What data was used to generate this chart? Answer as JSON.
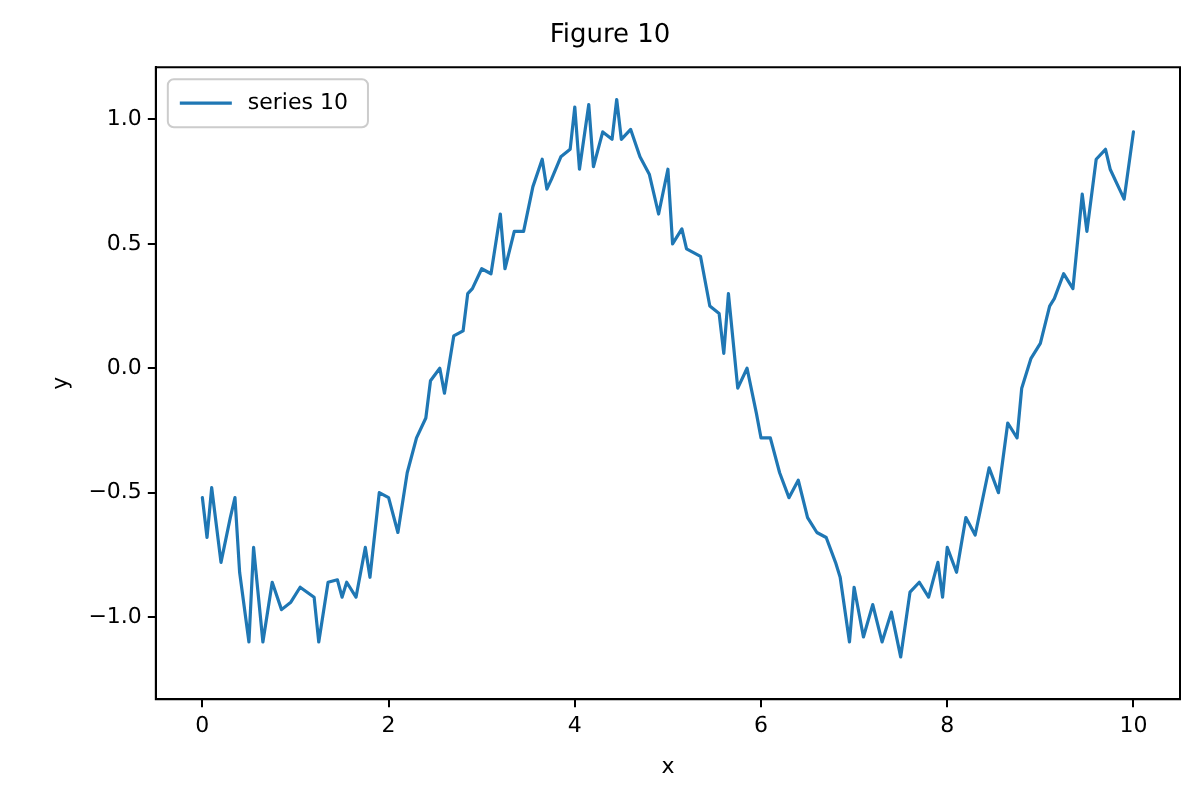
{
  "chart_data": {
    "type": "line",
    "title": "Figure 10",
    "xlabel": "x",
    "ylabel": "y",
    "xlim": [
      -0.5,
      10.5
    ],
    "xticks": [
      0,
      2,
      4,
      6,
      8,
      10
    ],
    "ylim": [
      -1.33,
      1.21
    ],
    "yticks": [
      {
        "value": -1,
        "label": "−1.0"
      },
      {
        "value": -0.5,
        "label": "−0.5"
      },
      {
        "value": 0,
        "label": "0.0"
      },
      {
        "value": 0.5,
        "label": "0.5"
      },
      {
        "value": 1,
        "label": "1.0"
      }
    ],
    "legend": "top left",
    "grid": false,
    "marker": "none",
    "line_style": "solid",
    "series": [
      {
        "name": "series 10",
        "color": "#1f77b4",
        "x": [
          0,
          0.05,
          0.1,
          0.2,
          0.3,
          0.35,
          0.4,
          0.5,
          0.55,
          0.65,
          0.75,
          0.85,
          0.95,
          1.05,
          1.2,
          1.25,
          1.35,
          1.45,
          1.5,
          1.55,
          1.65,
          1.75,
          1.8,
          1.9,
          2.0,
          2.1,
          2.2,
          2.3,
          2.4,
          2.45,
          2.55,
          2.6,
          2.7,
          2.8,
          2.85,
          2.9,
          3.0,
          3.1,
          3.2,
          3.25,
          3.35,
          3.45,
          3.55,
          3.65,
          3.7,
          3.75,
          3.85,
          3.95,
          4.0,
          4.05,
          4.15,
          4.2,
          4.3,
          4.4,
          4.45,
          4.5,
          4.6,
          4.7,
          4.8,
          4.9,
          5.0,
          5.05,
          5.15,
          5.2,
          5.35,
          5.45,
          5.55,
          5.6,
          5.65,
          5.75,
          5.85,
          5.95,
          6.0,
          6.1,
          6.2,
          6.3,
          6.4,
          6.5,
          6.6,
          6.7,
          6.8,
          6.85,
          6.95,
          7.0,
          7.1,
          7.2,
          7.3,
          7.4,
          7.5,
          7.6,
          7.7,
          7.8,
          7.9,
          7.95,
          8.0,
          8.1,
          8.2,
          8.3,
          8.45,
          8.55,
          8.65,
          8.75,
          8.8,
          8.9,
          9.0,
          9.1,
          9.15,
          9.25,
          9.35,
          9.45,
          9.5,
          9.6,
          9.7,
          9.75,
          9.85,
          9.9,
          10.0
        ],
        "values": [
          -0.52,
          -0.68,
          -0.48,
          -0.78,
          -0.6,
          -0.52,
          -0.82,
          -1.1,
          -0.72,
          -1.1,
          -0.86,
          -0.97,
          -0.94,
          -0.88,
          -0.92,
          -1.1,
          -0.86,
          -0.85,
          -0.92,
          -0.86,
          -0.92,
          -0.72,
          -0.84,
          -0.5,
          -0.52,
          -0.66,
          -0.42,
          -0.28,
          -0.2,
          -0.05,
          0.0,
          -0.1,
          0.13,
          0.15,
          0.3,
          0.32,
          0.4,
          0.38,
          0.62,
          0.4,
          0.55,
          0.55,
          0.73,
          0.84,
          0.72,
          0.76,
          0.85,
          0.88,
          1.05,
          0.8,
          1.06,
          0.81,
          0.95,
          0.92,
          1.08,
          0.92,
          0.96,
          0.85,
          0.78,
          0.62,
          0.8,
          0.5,
          0.56,
          0.48,
          0.45,
          0.25,
          0.22,
          0.06,
          0.3,
          -0.08,
          0.0,
          -0.18,
          -0.28,
          -0.28,
          -0.42,
          -0.52,
          -0.45,
          -0.6,
          -0.66,
          -0.68,
          -0.78,
          -0.84,
          -1.1,
          -0.88,
          -1.08,
          -0.95,
          -1.1,
          -0.98,
          -1.16,
          -0.9,
          -0.86,
          -0.92,
          -0.78,
          -0.92,
          -0.72,
          -0.82,
          -0.6,
          -0.67,
          -0.4,
          -0.5,
          -0.22,
          -0.28,
          -0.08,
          0.04,
          0.1,
          0.25,
          0.28,
          0.38,
          0.32,
          0.7,
          0.55,
          0.84,
          0.88,
          0.8,
          0.72,
          0.68,
          0.95
        ]
      }
    ]
  }
}
